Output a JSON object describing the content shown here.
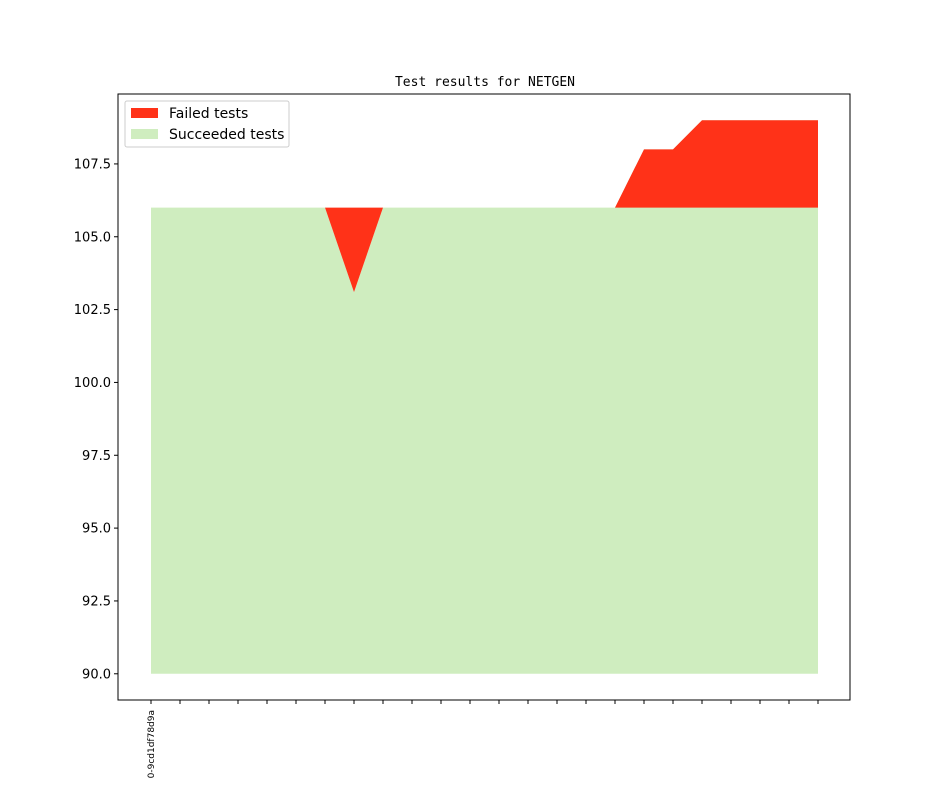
{
  "chart_data": {
    "type": "area",
    "title": "Test results for NETGEN",
    "xlabel": "",
    "ylabel": "",
    "x_tick_labels": [
      "0-9cd1df78d9a"
    ],
    "n_points": 24,
    "ylim": [
      89.1,
      109.9
    ],
    "yticks": [
      90.0,
      92.5,
      95.0,
      97.5,
      100.0,
      102.5,
      105.0,
      107.5
    ],
    "ytick_labels": [
      "90.0",
      "92.5",
      "95.0",
      "97.5",
      "100.0",
      "102.5",
      "105.0",
      "107.5"
    ],
    "grid": false,
    "legend_position": "top-left",
    "series": [
      {
        "name": "Failed tests",
        "color": "#ff3218",
        "lower": [
          106,
          106,
          106,
          106,
          106,
          106,
          106,
          103.1,
          106,
          106,
          106,
          106,
          106,
          106,
          106,
          106,
          106,
          106,
          106,
          106,
          106,
          106,
          106,
          106
        ],
        "upper": [
          106,
          106,
          106,
          106,
          106,
          106,
          106,
          106,
          106,
          106,
          106,
          106,
          106,
          106,
          106,
          106,
          106,
          108,
          108,
          109,
          109,
          109,
          109,
          109
        ]
      },
      {
        "name": "Succeeded tests",
        "color": "#cfedbf",
        "lower": [
          90,
          90,
          90,
          90,
          90,
          90,
          90,
          90,
          90,
          90,
          90,
          90,
          90,
          90,
          90,
          90,
          90,
          90,
          90,
          90,
          90,
          90,
          90,
          90
        ],
        "upper": [
          106,
          106,
          106,
          106,
          106,
          106,
          106,
          103.1,
          106,
          106,
          106,
          106,
          106,
          106,
          106,
          106,
          106,
          108,
          108,
          109,
          109,
          109,
          109,
          109
        ]
      }
    ]
  }
}
